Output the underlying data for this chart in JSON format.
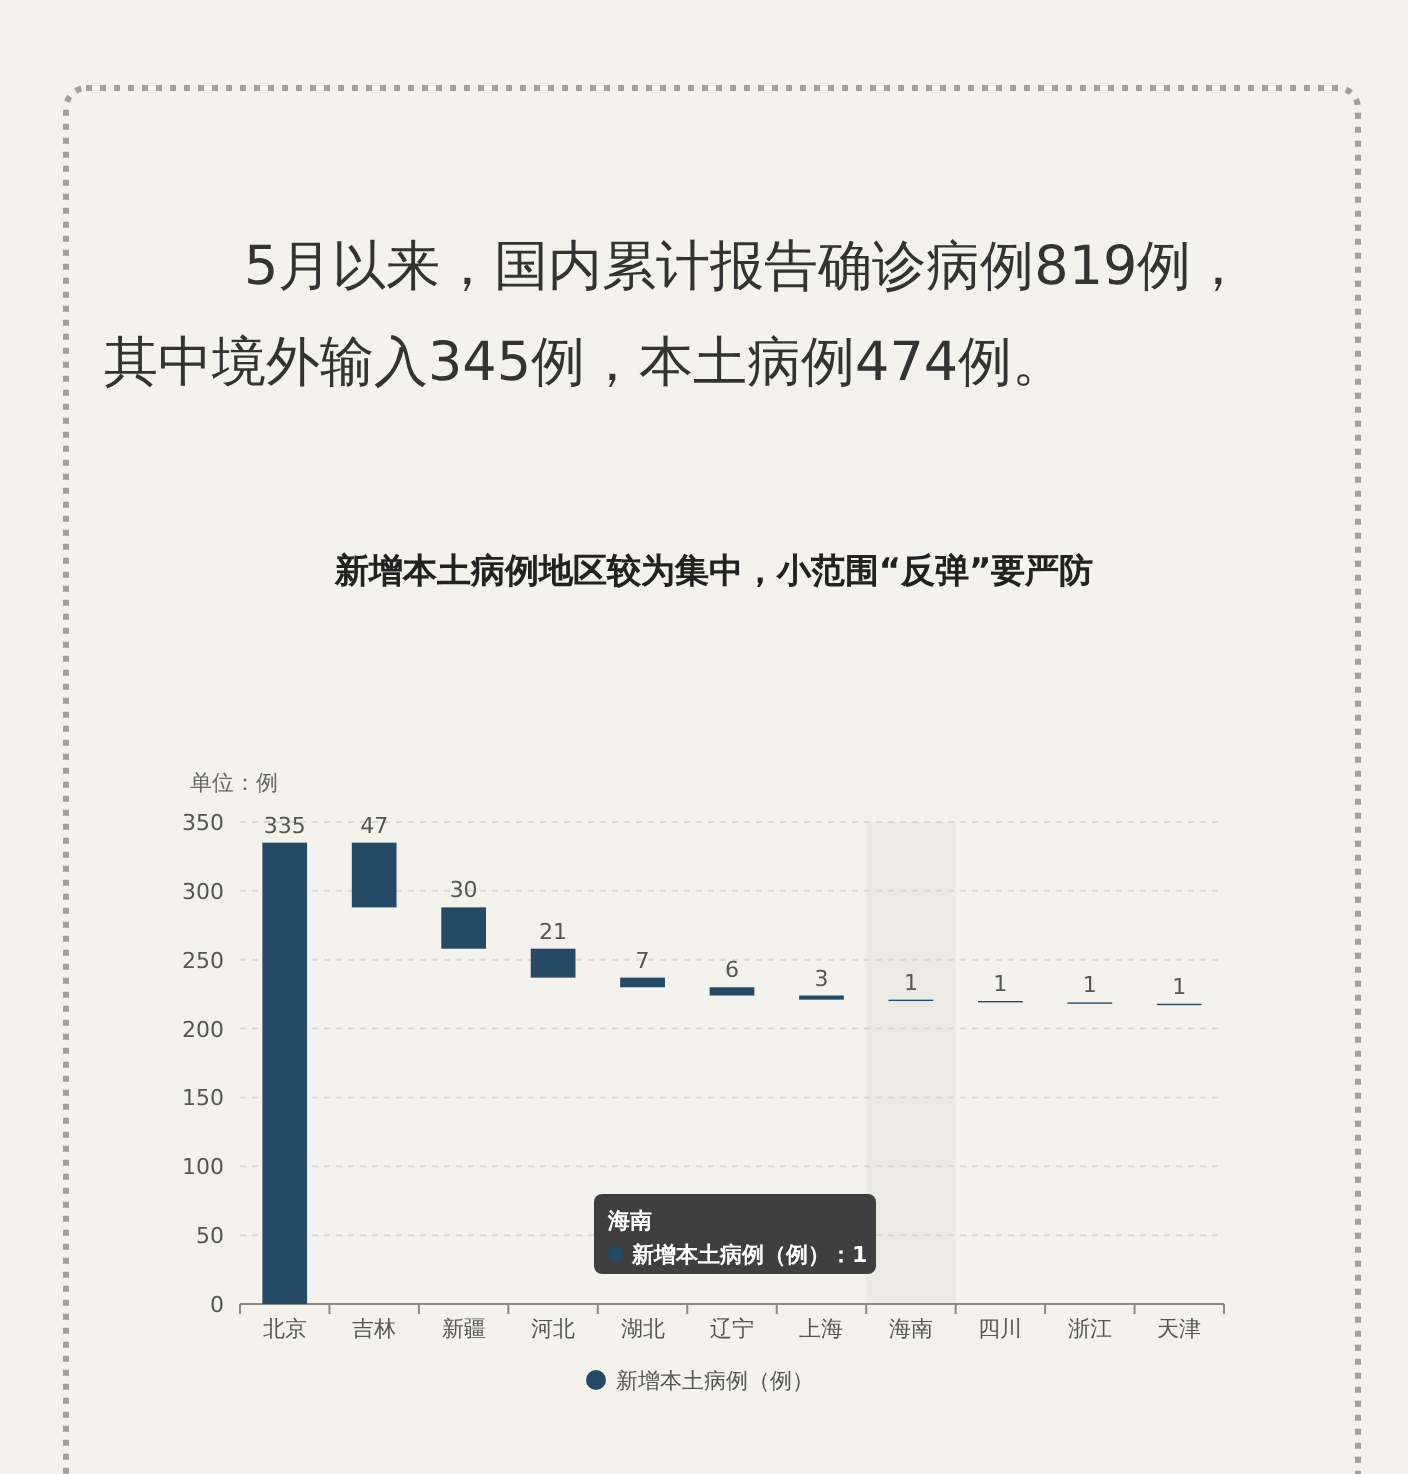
{
  "chart_data": {
    "type": "bar",
    "title": "新增本土病例地区较为集中，小范围“反弹”要严防",
    "ylabel": "单位：例",
    "annotations": [
      "5月以来，国内累计报告确诊病例819例，其中境外输入345例，本土病例474例。",
      "海南",
      "新增本土病例（例）：1"
    ],
    "categories": [
      "北京",
      "吉林",
      "新疆",
      "河北",
      "湖北",
      "辽宁",
      "上海",
      "海南",
      "四川",
      "浙江",
      "天津"
    ],
    "series": [
      {
        "name": "新增本土病例（例）",
        "color": "#244a65",
        "values": [
          335,
          47,
          30,
          21,
          7,
          6,
          3,
          1,
          1,
          1,
          1
        ],
        "base": [
          0,
          288,
          258,
          237,
          230,
          224,
          221,
          220,
          219,
          218,
          217
        ]
      }
    ],
    "bands": [
      {
        "axis": "x",
        "from": "海南",
        "to": "海南",
        "color": "#ebeae4"
      }
    ],
    "ylim": [
      0,
      350
    ],
    "yticks": [
      0,
      50,
      100,
      150,
      200,
      250,
      300,
      350
    ],
    "grid": "y",
    "legend": "bottom",
    "data_labels": true
  }
}
